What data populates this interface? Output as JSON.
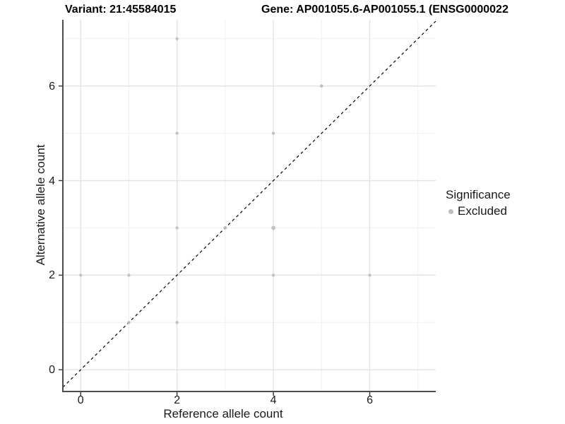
{
  "titles": {
    "variant": "Variant: 21:45584015",
    "gene": "Gene: AP001055.6-AP001055.1 (ENSG0000022"
  },
  "axes": {
    "x_label": "Reference allele count",
    "y_label": "Alternative allele count",
    "x_tick_labels": [
      "0",
      "2",
      "4",
      "6"
    ],
    "y_tick_labels": [
      "0",
      "2",
      "4",
      "6"
    ]
  },
  "legend": {
    "title": "Significance",
    "items": [
      {
        "label": "Excluded",
        "color": "#bdbdbd"
      }
    ]
  },
  "colors": {
    "background": "#ffffff",
    "point": "#bdbdbd",
    "grid_major": "#e3e3e3",
    "grid_minor": "#efefef",
    "axis_line": "#4d4d4d",
    "tick_mark": "#333333",
    "identity_line": "#000000",
    "text": "#1a1a1a",
    "title_text": "#000000"
  },
  "chart_data": {
    "type": "scatter",
    "title": "Variant: 21:45584015",
    "subtitle": "Gene: AP001055.6-AP001055.1 (ENSG0000022",
    "xlabel": "Reference allele count",
    "ylabel": "Alternative allele count",
    "xlim": [
      -0.37,
      7.37
    ],
    "ylim": [
      -0.46,
      7.4
    ],
    "x_breaks": [
      0,
      2,
      4,
      6
    ],
    "y_breaks": [
      0,
      2,
      4,
      6
    ],
    "x_minor_breaks": [
      1,
      3,
      5,
      7
    ],
    "y_minor_breaks": [
      1,
      3,
      5,
      7
    ],
    "grid": true,
    "legend_position": "right",
    "identity_line": {
      "slope": 1,
      "intercept": 0,
      "style": "dashed",
      "color": "#000000"
    },
    "series": [
      {
        "name": "Excluded",
        "color": "#bdbdbd",
        "points_note": "each point is [ref_count, alt_count, dot_radius_px]",
        "points": [
          [
            0,
            2,
            2.2
          ],
          [
            1,
            1,
            2.2
          ],
          [
            1,
            2,
            2.2
          ],
          [
            2,
            1,
            2.2
          ],
          [
            2,
            3,
            2.2
          ],
          [
            2,
            5,
            2.2
          ],
          [
            2,
            7,
            2.2
          ],
          [
            3,
            3,
            2.4
          ],
          [
            4,
            2,
            2.2
          ],
          [
            4,
            3,
            3.0
          ],
          [
            4,
            5,
            2.2
          ],
          [
            5,
            6,
            2.4
          ],
          [
            6,
            2,
            2.2
          ]
        ]
      }
    ]
  }
}
